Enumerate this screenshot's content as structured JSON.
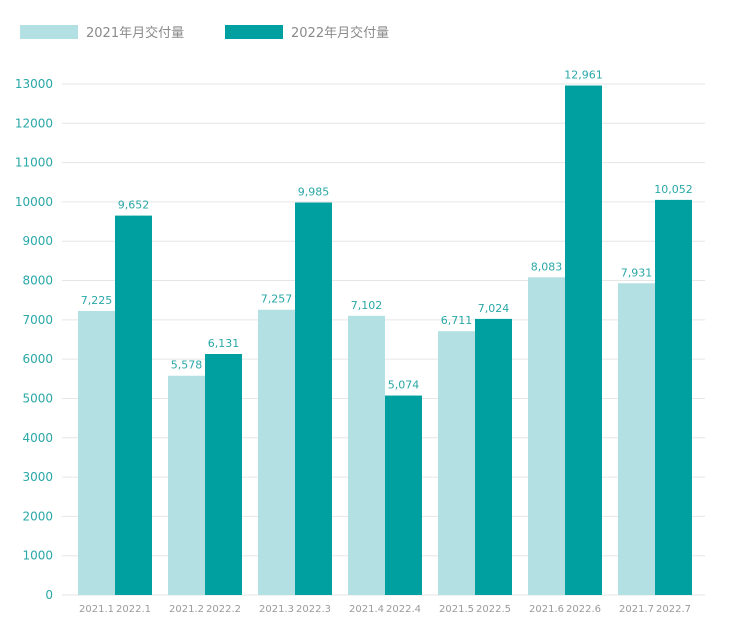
{
  "chart_data": {
    "type": "bar",
    "legend": [
      {
        "label": "2021年月交付量",
        "color": "#b3e0e3"
      },
      {
        "label": "2022年月交付量",
        "color": "#00a0a0"
      }
    ],
    "legend_position": "top-left",
    "ylim": [
      0,
      13000
    ],
    "yticks": [
      "0",
      "1000",
      "2000",
      "3000",
      "4000",
      "5000",
      "6000",
      "7000",
      "8000",
      "9000",
      "10000",
      "11000",
      "12000",
      "13000"
    ],
    "grid": true,
    "groups": [
      {
        "labels": [
          "2021.1",
          "2022.1"
        ],
        "values": [
          7225,
          9652
        ],
        "value_labels": [
          "7,225",
          "9,652"
        ]
      },
      {
        "labels": [
          "2021.2",
          "2022.2"
        ],
        "values": [
          5578,
          6131
        ],
        "value_labels": [
          "5,578",
          "6,131"
        ]
      },
      {
        "labels": [
          "2021.3",
          "2022.3"
        ],
        "values": [
          7257,
          9985
        ],
        "value_labels": [
          "7,257",
          "9,985"
        ]
      },
      {
        "labels": [
          "2021.4",
          "2022.4"
        ],
        "values": [
          7102,
          5074
        ],
        "value_labels": [
          "7,102",
          "5,074"
        ]
      },
      {
        "labels": [
          "2021.5",
          "2022.5"
        ],
        "values": [
          6711,
          7024
        ],
        "value_labels": [
          "6,711",
          "7,024"
        ]
      },
      {
        "labels": [
          "2021.6",
          "2022.6"
        ],
        "values": [
          8083,
          12961
        ],
        "value_labels": [
          "8,083",
          "12,961"
        ]
      },
      {
        "labels": [
          "2021.7",
          "2022.7"
        ],
        "values": [
          7931,
          10052
        ],
        "value_labels": [
          "7,931",
          "10,052"
        ]
      }
    ],
    "series_colors": [
      "#b3e0e3",
      "#00a0a0"
    ]
  }
}
